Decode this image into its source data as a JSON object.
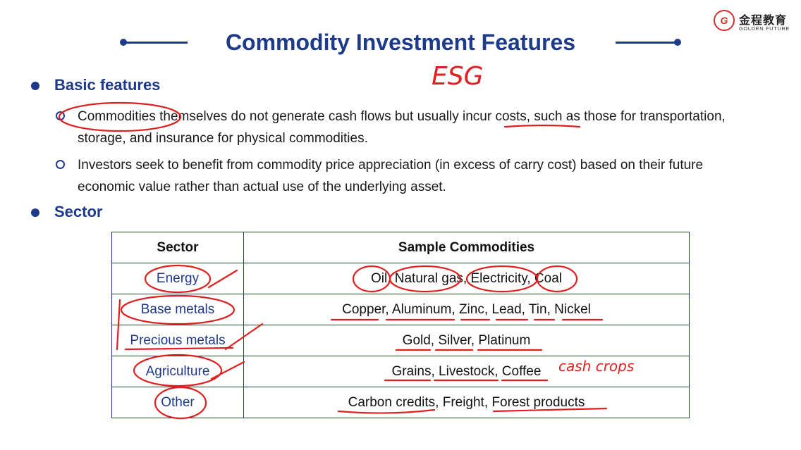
{
  "header": {
    "title": "Commodity Investment Features",
    "logo_mark": "G",
    "logo_cn": "金程教育",
    "logo_en": "GOLDEN FUTURE"
  },
  "sections": {
    "basic": {
      "heading": "Basic features",
      "points": [
        "Commodities themselves do not generate cash flows but usually incur costs, such as those for transportation, storage, and insurance for physical commodities.",
        "Investors seek to benefit from commodity price appreciation (in excess of carry cost) based on their future economic value rather than actual use of the underlying asset."
      ]
    },
    "sector": {
      "heading": "Sector"
    }
  },
  "table": {
    "headers": [
      "Sector",
      "Sample Commodities"
    ],
    "rows": [
      {
        "sector": "Energy",
        "samples": "Oil, Natural gas, Electricity, Coal"
      },
      {
        "sector": "Base metals",
        "samples": "Copper, Aluminum, Zinc, Lead, Tin, Nickel"
      },
      {
        "sector": "Precious metals",
        "samples": "Gold, Silver, Platinum"
      },
      {
        "sector": "Agriculture",
        "samples": "Grains, Livestock, Coffee"
      },
      {
        "sector": "Other",
        "samples": "Carbon credits, Freight, Forest products"
      }
    ]
  },
  "annotations": {
    "esg": "ESG",
    "cash_crops": "cash crops"
  },
  "colors": {
    "accent": "#1e3a8a",
    "ink": "#e02020"
  }
}
